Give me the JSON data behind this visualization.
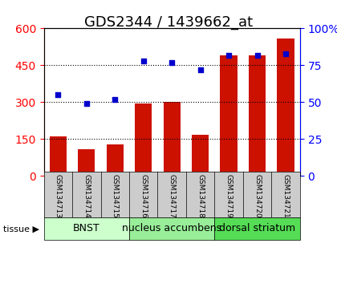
{
  "title": "GDS2344 / 1439662_at",
  "samples": [
    "GSM134713",
    "GSM134714",
    "GSM134715",
    "GSM134716",
    "GSM134717",
    "GSM134718",
    "GSM134719",
    "GSM134720",
    "GSM134721"
  ],
  "counts": [
    160,
    110,
    130,
    295,
    300,
    168,
    490,
    490,
    560
  ],
  "percentiles": [
    55,
    49,
    52,
    78,
    77,
    72,
    82,
    82,
    83
  ],
  "tissues": [
    {
      "label": "BNST",
      "start": 0,
      "end": 3,
      "color": "#ccffcc"
    },
    {
      "label": "nucleus accumbens",
      "start": 3,
      "end": 6,
      "color": "#99ee99"
    },
    {
      "label": "dorsal striatum",
      "start": 6,
      "end": 9,
      "color": "#55dd55"
    }
  ],
  "bar_color": "#cc1100",
  "dot_color": "#0000cc",
  "left_ylim": [
    0,
    600
  ],
  "right_ylim": [
    0,
    100
  ],
  "left_yticks": [
    0,
    150,
    300,
    450,
    600
  ],
  "right_yticks": [
    0,
    25,
    50,
    75,
    100
  ],
  "right_yticklabels": [
    "0",
    "25",
    "50",
    "75",
    "100%"
  ],
  "grid_color": "black",
  "background_color": "#ffffff",
  "tick_label_area_color": "#cccccc",
  "tissue_label_fontsize": 9,
  "title_fontsize": 13
}
